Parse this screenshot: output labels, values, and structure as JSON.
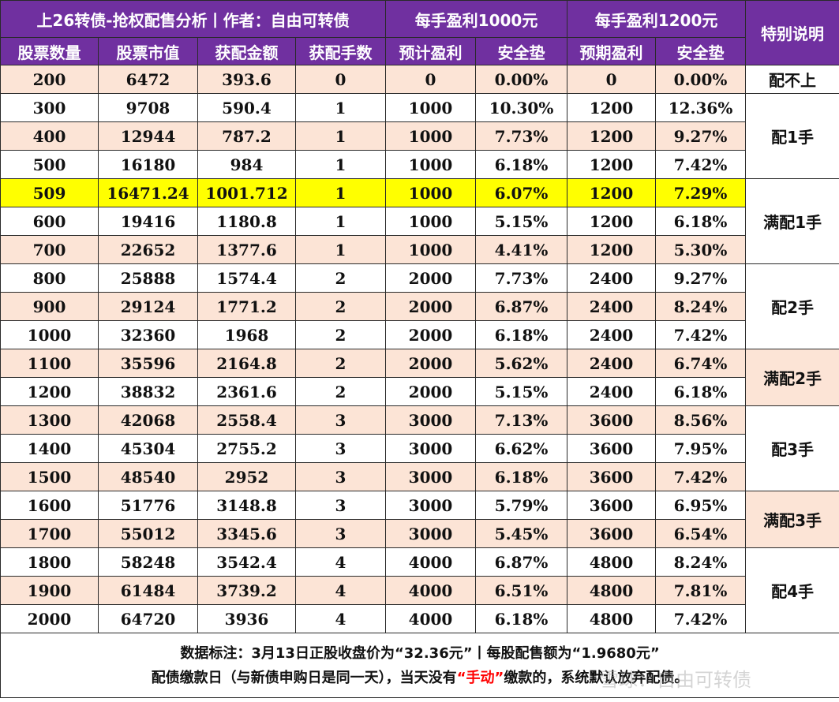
{
  "header": {
    "title": "上26转债-抢权配售分析丨作者：自由可转债",
    "group1": "每手盈利1000元",
    "group2": "每手盈利1200元",
    "note": "特别说明",
    "columns": [
      "股票数量",
      "股票市值",
      "获配金额",
      "获配手数",
      "预计盈利",
      "安全垫",
      "预期盈利",
      "安全垫"
    ]
  },
  "rows": [
    [
      "200",
      "6472",
      "393.6",
      "0",
      "0",
      "0.00%",
      "0",
      "0.00%"
    ],
    [
      "300",
      "9708",
      "590.4",
      "1",
      "1000",
      "10.30%",
      "1200",
      "12.36%"
    ],
    [
      "400",
      "12944",
      "787.2",
      "1",
      "1000",
      "7.73%",
      "1200",
      "9.27%"
    ],
    [
      "500",
      "16180",
      "984",
      "1",
      "1000",
      "6.18%",
      "1200",
      "7.42%"
    ],
    [
      "509",
      "16471.24",
      "1001.712",
      "1",
      "1000",
      "6.07%",
      "1200",
      "7.29%"
    ],
    [
      "600",
      "19416",
      "1180.8",
      "1",
      "1000",
      "5.15%",
      "1200",
      "6.18%"
    ],
    [
      "700",
      "22652",
      "1377.6",
      "1",
      "1000",
      "4.41%",
      "1200",
      "5.30%"
    ],
    [
      "800",
      "25888",
      "1574.4",
      "2",
      "2000",
      "7.73%",
      "2400",
      "9.27%"
    ],
    [
      "900",
      "29124",
      "1771.2",
      "2",
      "2000",
      "6.87%",
      "2400",
      "8.24%"
    ],
    [
      "1000",
      "32360",
      "1968",
      "2",
      "2000",
      "6.18%",
      "2400",
      "7.42%"
    ],
    [
      "1100",
      "35596",
      "2164.8",
      "2",
      "2000",
      "5.62%",
      "2400",
      "6.74%"
    ],
    [
      "1200",
      "38832",
      "2361.6",
      "2",
      "2000",
      "5.15%",
      "2400",
      "6.18%"
    ],
    [
      "1300",
      "42068",
      "2558.4",
      "3",
      "3000",
      "7.13%",
      "3600",
      "8.56%"
    ],
    [
      "1400",
      "45304",
      "2755.2",
      "3",
      "3000",
      "6.62%",
      "3600",
      "7.95%"
    ],
    [
      "1500",
      "48540",
      "2952",
      "3",
      "3000",
      "6.18%",
      "3600",
      "7.42%"
    ],
    [
      "1600",
      "51776",
      "3148.8",
      "3",
      "3000",
      "5.79%",
      "3600",
      "6.95%"
    ],
    [
      "1700",
      "55012",
      "3345.6",
      "3",
      "3000",
      "5.45%",
      "3600",
      "6.54%"
    ],
    [
      "1800",
      "58248",
      "3542.4",
      "4",
      "4000",
      "6.87%",
      "4800",
      "8.24%"
    ],
    [
      "1900",
      "61484",
      "3739.2",
      "4",
      "4000",
      "6.51%",
      "4800",
      "7.81%"
    ],
    [
      "2000",
      "64720",
      "3936",
      "4",
      "4000",
      "6.18%",
      "4800",
      "7.42%"
    ]
  ],
  "row_styles": [
    "peach",
    "white",
    "peach",
    "white",
    "hl",
    "white",
    "peach",
    "white",
    "peach",
    "white",
    "peach",
    "white",
    "peach",
    "white",
    "peach",
    "white",
    "peach",
    "white",
    "peach",
    "white"
  ],
  "remarks": [
    "配不上",
    "配1手",
    "满配1手",
    "配2手",
    "满配2手",
    "配3手",
    "满配3手",
    "配4手"
  ],
  "footer": {
    "line1": "数据标注：3月13日正股收盘价为“32.36元”丨每股配售额为“1.9680元”",
    "line2_a": "配债缴款日（与新债申购日是同一天），当天没有",
    "line2_red": "“手动”",
    "line2_b": "缴款的，系统默认放弃配债。",
    "watermark": "雪球：自由可转债"
  }
}
